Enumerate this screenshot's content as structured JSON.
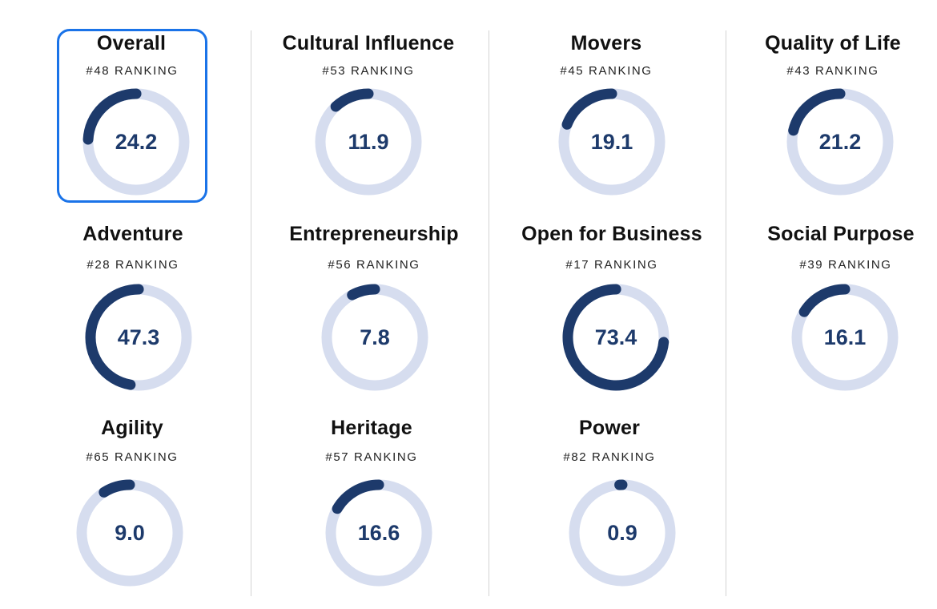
{
  "colors": {
    "track": "#d6ddef",
    "arc": "#1d3a6b",
    "value_text": "#1d3a6b",
    "highlight_border": "#1a73e8"
  },
  "metrics": [
    {
      "name": "Overall",
      "rank": "#48 RANKING",
      "value": "24.2",
      "score": 24.2,
      "selected": true
    },
    {
      "name": "Cultural Influence",
      "rank": "#53 RANKING",
      "value": "11.9",
      "score": 11.9
    },
    {
      "name": "Movers",
      "rank": "#45 RANKING",
      "value": "19.1",
      "score": 19.1
    },
    {
      "name": "Quality of Life",
      "rank": "#43 RANKING",
      "value": "21.2",
      "score": 21.2
    },
    {
      "name": "Adventure",
      "rank": "#28 RANKING",
      "value": "47.3",
      "score": 47.3
    },
    {
      "name": "Entrepreneurship",
      "rank": "#56 RANKING",
      "value": "7.8",
      "score": 7.8
    },
    {
      "name": "Open for Business",
      "rank": "#17 RANKING",
      "value": "73.4",
      "score": 73.4
    },
    {
      "name": "Social Purpose",
      "rank": "#39 RANKING",
      "value": "16.1",
      "score": 16.1
    },
    {
      "name": "Agility",
      "rank": "#65 RANKING",
      "value": "9.0",
      "score": 9.0
    },
    {
      "name": "Heritage",
      "rank": "#57 RANKING",
      "value": "16.6",
      "score": 16.6
    },
    {
      "name": "Power",
      "rank": "#82 RANKING",
      "value": "0.9",
      "score": 0.9
    }
  ]
}
